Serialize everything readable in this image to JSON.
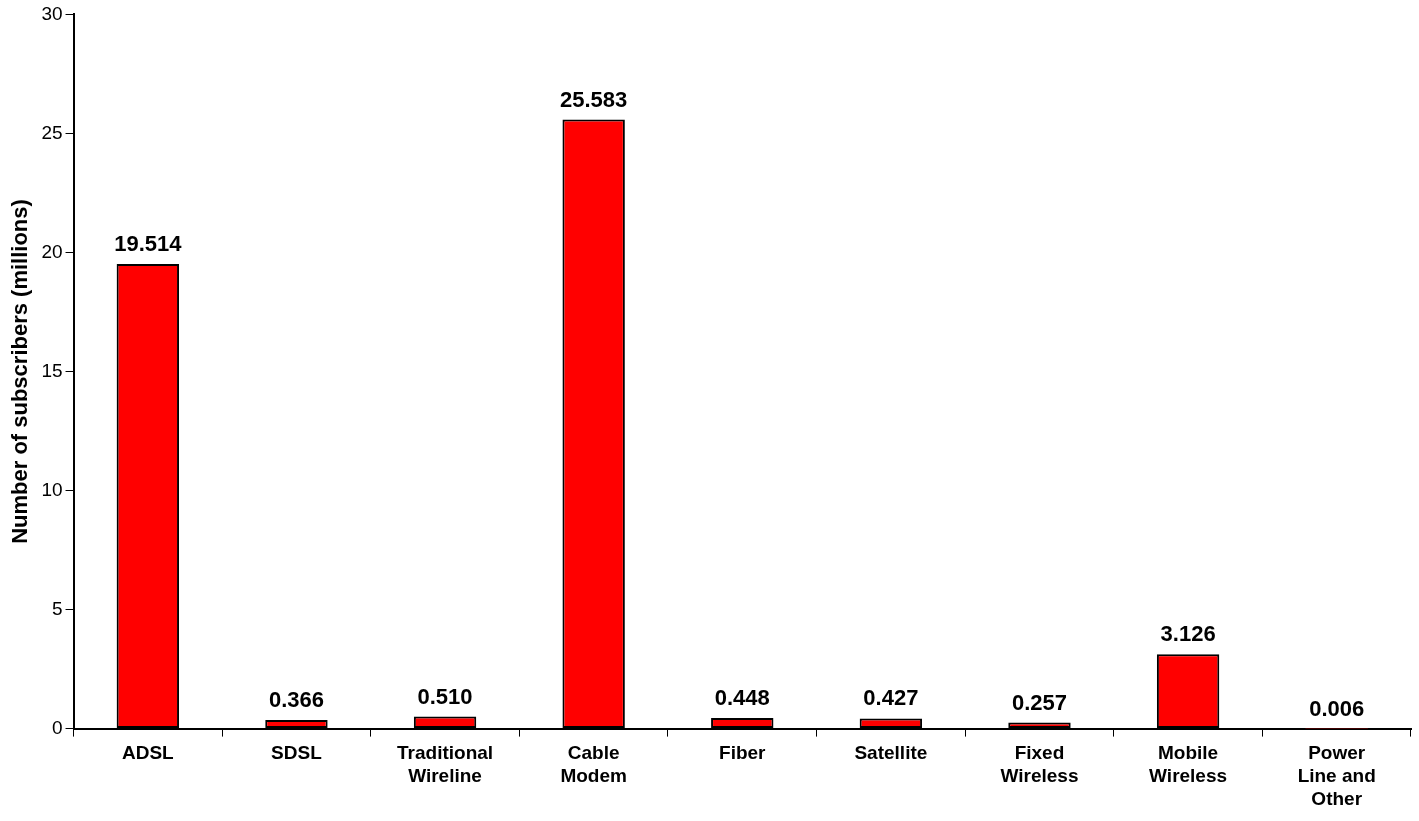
{
  "chart_data": {
    "type": "bar",
    "ylabel": "Number of subscribers (millions)",
    "categories": [
      "ADSL",
      "SDSL",
      "Traditional Wireline",
      "Cable Modem",
      "Fiber",
      "Satellite",
      "Fixed Wireless",
      "Mobile Wireless",
      "Power Line and Other"
    ],
    "values": [
      19.514,
      0.366,
      0.51,
      25.583,
      0.448,
      0.427,
      0.257,
      3.126,
      0.006
    ],
    "value_labels": [
      "19.514",
      "0.366",
      "0.510",
      "25.583",
      "0.448",
      "0.427",
      "0.257",
      "3.126",
      "0.006"
    ],
    "color": "#ff0000",
    "ylim": [
      0,
      30
    ],
    "yticks": [
      0,
      5,
      10,
      15,
      20,
      25,
      30
    ],
    "grid": false,
    "legend": false
  }
}
